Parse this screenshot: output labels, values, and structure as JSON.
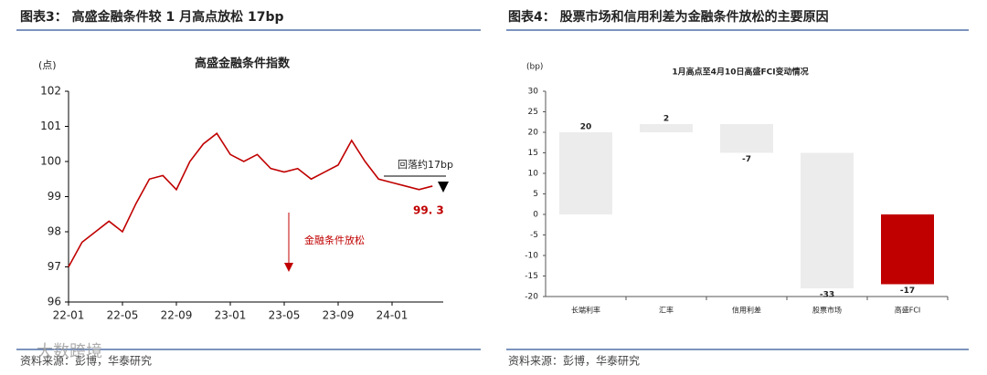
{
  "chart_data": [
    {
      "type": "line",
      "heading": "图表3：  高盛金融条件较 1 月高点放松 17bp",
      "title": "高盛金融条件指数",
      "y_unit": "(点)",
      "categories": [
        "22-01",
        null,
        null,
        null,
        "22-05",
        null,
        null,
        null,
        "22-09",
        null,
        null,
        null,
        "23-01",
        null,
        null,
        null,
        "23-05",
        null,
        null,
        null,
        "23-09",
        null,
        null,
        null,
        "24-01",
        null,
        null,
        null
      ],
      "values": [
        97.0,
        97.7,
        98.0,
        98.3,
        98.0,
        98.8,
        99.5,
        99.6,
        99.2,
        100.0,
        100.5,
        100.8,
        100.2,
        100.0,
        100.2,
        99.8,
        99.7,
        99.8,
        99.5,
        99.7,
        99.9,
        100.6,
        100.0,
        99.5,
        99.4,
        99.3,
        99.2,
        99.3
      ],
      "color": "#c00000",
      "ylim": [
        96,
        102
      ],
      "yticks": [
        96,
        97,
        98,
        99,
        100,
        101,
        102
      ],
      "annotations": [
        "回落约17bp",
        "99. 3",
        "金融条件放松"
      ],
      "source": "资料来源：彭博，华泰研究",
      "watermark": "大数跨境"
    },
    {
      "type": "waterfall",
      "heading": "图表4：  股票市场和信用利差为金融条件放松的主要原因",
      "title": "1月高点至4月10日高盛FCI变动情况",
      "y_unit": "(bp)",
      "categories": [
        "长端利率",
        "汇率",
        "信用利差",
        "股票市场",
        "高盛FCI"
      ],
      "values": [
        20,
        2,
        -7,
        -33,
        -17
      ],
      "colors": [
        "#ececec",
        "#ececec",
        "#ececec",
        "#ececec",
        "#c00000"
      ],
      "ylim": [
        -20,
        30
      ],
      "yticks": [
        -20,
        -15,
        -10,
        -5,
        0,
        5,
        10,
        15,
        20,
        25,
        30
      ],
      "source": "资料来源：彭博，华泰研究"
    }
  ]
}
